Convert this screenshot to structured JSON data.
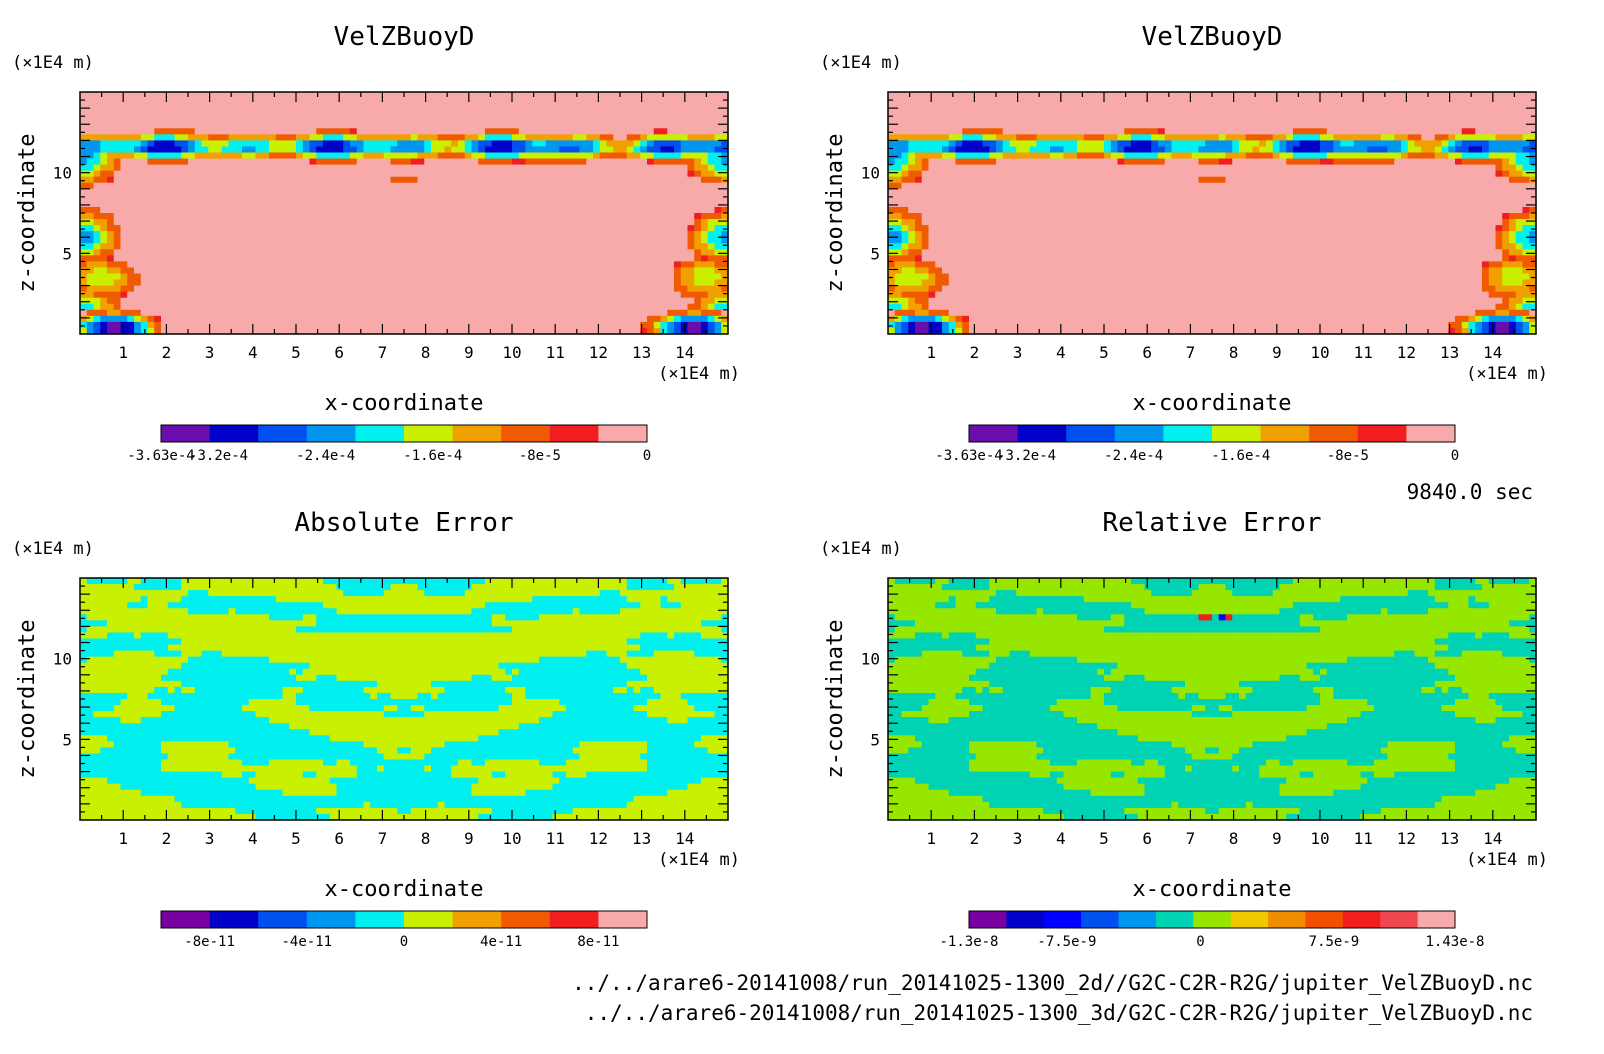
{
  "time_label": "9840.0 sec",
  "file_paths": [
    "../../arare6-20141008/run_20141025-1300_2d//G2C-C2R-R2G/jupiter_VelZBuoyD.nc",
    "../../arare6-20141008/run_20141025-1300_3d/G2C-C2R-R2G/jupiter_VelZBuoyD.nc"
  ],
  "chart_data": [
    {
      "type": "heatmap",
      "title": "VelZBuoyD",
      "xlabel": "x-coordinate",
      "ylabel": "z-coordinate",
      "x_unit": "(×1E4 m)",
      "y_unit": "(×1E4 m)",
      "xlim": [
        0,
        15
      ],
      "ylim": [
        0,
        15
      ],
      "x_ticks": [
        "1",
        "2",
        "3",
        "4",
        "5",
        "6",
        "7",
        "8",
        "9",
        "10",
        "11",
        "12",
        "13",
        "14"
      ],
      "y_ticks": [
        "5",
        "10"
      ],
      "colorbar": {
        "min": -0.000363,
        "max": 0,
        "labels": [
          "-3.63e-4",
          "-3.2e-4",
          "-2.4e-4",
          "-1.6e-4",
          "-8e-5",
          "0"
        ],
        "colors": [
          "#6a0dad",
          "#0000c8",
          "#0050f0",
          "#0096f0",
          "#00f0f0",
          "#c8f000",
          "#f0a000",
          "#f05a00",
          "#f01e1e",
          "#f8aaaa"
        ]
      },
      "field": "buoyancy"
    },
    {
      "type": "heatmap",
      "title": "VelZBuoyD",
      "xlabel": "x-coordinate",
      "ylabel": "z-coordinate",
      "x_unit": "(×1E4 m)",
      "y_unit": "(×1E4 m)",
      "xlim": [
        0,
        15
      ],
      "ylim": [
        0,
        15
      ],
      "x_ticks": [
        "1",
        "2",
        "3",
        "4",
        "5",
        "6",
        "7",
        "8",
        "9",
        "10",
        "11",
        "12",
        "13",
        "14"
      ],
      "y_ticks": [
        "5",
        "10"
      ],
      "colorbar": {
        "min": -0.000363,
        "max": 0,
        "labels": [
          "-3.63e-4",
          "-3.2e-4",
          "-2.4e-4",
          "-1.6e-4",
          "-8e-5",
          "0"
        ],
        "colors": [
          "#6a0dad",
          "#0000c8",
          "#0050f0",
          "#0096f0",
          "#00f0f0",
          "#c8f000",
          "#f0a000",
          "#f05a00",
          "#f01e1e",
          "#f8aaaa"
        ]
      },
      "field": "buoyancy"
    },
    {
      "type": "heatmap",
      "title": "Absolute Error",
      "xlabel": "x-coordinate",
      "ylabel": "z-coordinate",
      "x_unit": "(×1E4 m)",
      "y_unit": "(×1E4 m)",
      "xlim": [
        0,
        15
      ],
      "ylim": [
        0,
        15
      ],
      "x_ticks": [
        "1",
        "2",
        "3",
        "4",
        "5",
        "6",
        "7",
        "8",
        "9",
        "10",
        "11",
        "12",
        "13",
        "14"
      ],
      "y_ticks": [
        "5",
        "10"
      ],
      "colorbar": {
        "min": -1e-10,
        "max": 1e-10,
        "labels": [
          "-8e-11",
          "-4e-11",
          "0",
          "4e-11",
          "8e-11"
        ],
        "colors": [
          "#7800a0",
          "#0000c8",
          "#0050f0",
          "#0096f0",
          "#00f0f0",
          "#c8f000",
          "#f0a000",
          "#f05a00",
          "#f01e1e",
          "#f8aaaa"
        ]
      },
      "field": "abs_error"
    },
    {
      "type": "heatmap",
      "title": "Relative Error",
      "xlabel": "x-coordinate",
      "ylabel": "z-coordinate",
      "x_unit": "(×1E4 m)",
      "y_unit": "(×1E4 m)",
      "xlim": [
        0,
        15
      ],
      "ylim": [
        0,
        15
      ],
      "x_ticks": [
        "1",
        "2",
        "3",
        "4",
        "5",
        "6",
        "7",
        "8",
        "9",
        "10",
        "11",
        "12",
        "13",
        "14"
      ],
      "y_ticks": [
        "5",
        "10"
      ],
      "colorbar": {
        "min": -1.3e-08,
        "max": 1.43e-08,
        "labels": [
          "-1.3e-8",
          "-7.5e-9",
          "0",
          "7.5e-9",
          "1.43e-8"
        ],
        "colors": [
          "#7800a0",
          "#0000c8",
          "#0000ff",
          "#0050f0",
          "#0096f0",
          "#00d2b4",
          "#96e600",
          "#f0c800",
          "#f08c00",
          "#f05000",
          "#f01e1e",
          "#f04650",
          "#f8aaaa"
        ]
      },
      "field": "rel_error"
    }
  ]
}
